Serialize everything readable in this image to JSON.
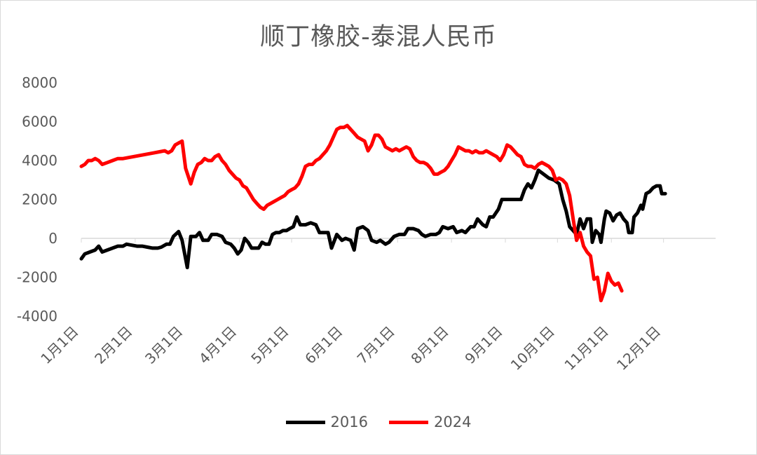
{
  "chart_data": {
    "type": "line",
    "title": "顺丁橡胶-泰混人民币",
    "ylim": [
      -4000,
      8000
    ],
    "y_ticks": [
      "8000",
      "6000",
      "4000",
      "2000",
      "0",
      "-2000",
      "-4000"
    ],
    "x_ticks": [
      "1月1日",
      "2月1日",
      "3月1日",
      "4月1日",
      "5月1日",
      "6月1日",
      "7月1日",
      "8月1日",
      "9月1日",
      "10月1日",
      "11月1日",
      "12月1日"
    ],
    "x_unit": "day_of_year",
    "grid": false,
    "legend_position": "bottom",
    "series": [
      {
        "name": "2016",
        "color": "#000000",
        "points": [
          [
            1,
            -1050
          ],
          [
            3,
            -800
          ],
          [
            6,
            -700
          ],
          [
            9,
            -600
          ],
          [
            11,
            -400
          ],
          [
            13,
            -700
          ],
          [
            16,
            -600
          ],
          [
            19,
            -500
          ],
          [
            22,
            -400
          ],
          [
            25,
            -400
          ],
          [
            27,
            -300
          ],
          [
            30,
            -350
          ],
          [
            33,
            -400
          ],
          [
            36,
            -400
          ],
          [
            39,
            -450
          ],
          [
            42,
            -500
          ],
          [
            45,
            -500
          ],
          [
            47,
            -450
          ],
          [
            50,
            -300
          ],
          [
            52,
            -300
          ],
          [
            54,
            100
          ],
          [
            57,
            350
          ],
          [
            59,
            -100
          ],
          [
            62,
            -1500
          ],
          [
            64,
            100
          ],
          [
            67,
            100
          ],
          [
            69,
            300
          ],
          [
            71,
            -100
          ],
          [
            74,
            -100
          ],
          [
            76,
            200
          ],
          [
            79,
            200
          ],
          [
            82,
            100
          ],
          [
            84,
            -200
          ],
          [
            87,
            -300
          ],
          [
            89,
            -500
          ],
          [
            91,
            -800
          ],
          [
            93,
            -600
          ],
          [
            95,
            0
          ],
          [
            97,
            -200
          ],
          [
            99,
            -500
          ],
          [
            101,
            -500
          ],
          [
            103,
            -500
          ],
          [
            105,
            -200
          ],
          [
            107,
            -300
          ],
          [
            109,
            -300
          ],
          [
            111,
            200
          ],
          [
            113,
            300
          ],
          [
            115,
            300
          ],
          [
            117,
            400
          ],
          [
            119,
            400
          ],
          [
            121,
            500
          ],
          [
            123,
            600
          ],
          [
            125,
            1100
          ],
          [
            127,
            700
          ],
          [
            130,
            700
          ],
          [
            133,
            800
          ],
          [
            136,
            700
          ],
          [
            138,
            300
          ],
          [
            141,
            300
          ],
          [
            143,
            300
          ],
          [
            145,
            -500
          ],
          [
            148,
            200
          ],
          [
            151,
            -100
          ],
          [
            153,
            0
          ],
          [
            156,
            -100
          ],
          [
            158,
            -600
          ],
          [
            160,
            500
          ],
          [
            163,
            600
          ],
          [
            166,
            400
          ],
          [
            168,
            -100
          ],
          [
            171,
            -200
          ],
          [
            173,
            -100
          ],
          [
            176,
            -300
          ],
          [
            178,
            -200
          ],
          [
            181,
            100
          ],
          [
            184,
            200
          ],
          [
            187,
            200
          ],
          [
            189,
            500
          ],
          [
            192,
            500
          ],
          [
            195,
            400
          ],
          [
            197,
            200
          ],
          [
            199,
            100
          ],
          [
            202,
            200
          ],
          [
            205,
            200
          ],
          [
            207,
            300
          ],
          [
            209,
            600
          ],
          [
            212,
            500
          ],
          [
            215,
            600
          ],
          [
            217,
            300
          ],
          [
            220,
            400
          ],
          [
            222,
            300
          ],
          [
            225,
            600
          ],
          [
            227,
            600
          ],
          [
            229,
            1000
          ],
          [
            232,
            700
          ],
          [
            234,
            600
          ],
          [
            236,
            1100
          ],
          [
            238,
            1100
          ],
          [
            241,
            1500
          ],
          [
            243,
            2000
          ],
          [
            246,
            2000
          ],
          [
            249,
            2000
          ],
          [
            252,
            2000
          ],
          [
            254,
            2000
          ],
          [
            256,
            2500
          ],
          [
            258,
            2800
          ],
          [
            260,
            2600
          ],
          [
            262,
            3000
          ],
          [
            264,
            3500
          ],
          [
            267,
            3300
          ],
          [
            270,
            3100
          ],
          [
            273,
            3000
          ],
          [
            276,
            2800
          ],
          [
            278,
            2000
          ],
          [
            280,
            1400
          ],
          [
            282,
            600
          ],
          [
            284,
            400
          ],
          [
            286,
            200
          ],
          [
            288,
            1000
          ],
          [
            290,
            500
          ],
          [
            292,
            1000
          ],
          [
            294,
            1000
          ],
          [
            295,
            -200
          ],
          [
            297,
            400
          ],
          [
            299,
            200
          ],
          [
            300,
            -200
          ],
          [
            302,
            1000
          ],
          [
            303,
            1400
          ],
          [
            305,
            1300
          ],
          [
            307,
            900
          ],
          [
            309,
            1200
          ],
          [
            311,
            1300
          ],
          [
            313,
            1000
          ],
          [
            315,
            800
          ],
          [
            316,
            300
          ],
          [
            318,
            300
          ],
          [
            319,
            1100
          ],
          [
            321,
            1300
          ],
          [
            323,
            1700
          ],
          [
            324,
            1500
          ],
          [
            326,
            2300
          ],
          [
            328,
            2400
          ],
          [
            330,
            2600
          ],
          [
            332,
            2700
          ],
          [
            334,
            2700
          ],
          [
            335,
            2300
          ],
          [
            337,
            2300
          ]
        ]
      },
      {
        "name": "2024",
        "color": "#ff0000",
        "points": [
          [
            1,
            3700
          ],
          [
            3,
            3800
          ],
          [
            5,
            4000
          ],
          [
            7,
            4000
          ],
          [
            9,
            4100
          ],
          [
            11,
            4000
          ],
          [
            13,
            3800
          ],
          [
            16,
            3900
          ],
          [
            19,
            4000
          ],
          [
            22,
            4100
          ],
          [
            25,
            4100
          ],
          [
            28,
            4150
          ],
          [
            31,
            4200
          ],
          [
            34,
            4250
          ],
          [
            37,
            4300
          ],
          [
            40,
            4350
          ],
          [
            43,
            4400
          ],
          [
            46,
            4450
          ],
          [
            49,
            4500
          ],
          [
            51,
            4400
          ],
          [
            53,
            4500
          ],
          [
            55,
            4800
          ],
          [
            57,
            4900
          ],
          [
            59,
            5000
          ],
          [
            61,
            3600
          ],
          [
            64,
            2800
          ],
          [
            66,
            3400
          ],
          [
            68,
            3800
          ],
          [
            70,
            3900
          ],
          [
            72,
            4100
          ],
          [
            74,
            4000
          ],
          [
            76,
            4000
          ],
          [
            78,
            4200
          ],
          [
            80,
            4300
          ],
          [
            82,
            4000
          ],
          [
            84,
            3800
          ],
          [
            86,
            3500
          ],
          [
            88,
            3300
          ],
          [
            90,
            3100
          ],
          [
            92,
            3000
          ],
          [
            94,
            2700
          ],
          [
            96,
            2600
          ],
          [
            98,
            2300
          ],
          [
            100,
            2000
          ],
          [
            102,
            1800
          ],
          [
            104,
            1600
          ],
          [
            106,
            1500
          ],
          [
            108,
            1700
          ],
          [
            110,
            1800
          ],
          [
            112,
            1900
          ],
          [
            114,
            2000
          ],
          [
            116,
            2100
          ],
          [
            118,
            2200
          ],
          [
            120,
            2400
          ],
          [
            122,
            2500
          ],
          [
            124,
            2600
          ],
          [
            126,
            2800
          ],
          [
            128,
            3200
          ],
          [
            130,
            3700
          ],
          [
            132,
            3800
          ],
          [
            134,
            3800
          ],
          [
            136,
            4000
          ],
          [
            138,
            4100
          ],
          [
            140,
            4300
          ],
          [
            142,
            4500
          ],
          [
            144,
            4800
          ],
          [
            146,
            5200
          ],
          [
            148,
            5600
          ],
          [
            150,
            5700
          ],
          [
            152,
            5700
          ],
          [
            154,
            5800
          ],
          [
            156,
            5600
          ],
          [
            158,
            5400
          ],
          [
            160,
            5200
          ],
          [
            162,
            5100
          ],
          [
            164,
            5000
          ],
          [
            166,
            4500
          ],
          [
            168,
            4800
          ],
          [
            170,
            5300
          ],
          [
            172,
            5300
          ],
          [
            174,
            5100
          ],
          [
            176,
            4700
          ],
          [
            178,
            4600
          ],
          [
            180,
            4500
          ],
          [
            182,
            4600
          ],
          [
            184,
            4500
          ],
          [
            186,
            4600
          ],
          [
            188,
            4700
          ],
          [
            190,
            4600
          ],
          [
            192,
            4200
          ],
          [
            194,
            4000
          ],
          [
            196,
            3900
          ],
          [
            198,
            3900
          ],
          [
            200,
            3800
          ],
          [
            202,
            3600
          ],
          [
            204,
            3300
          ],
          [
            206,
            3300
          ],
          [
            208,
            3400
          ],
          [
            210,
            3500
          ],
          [
            212,
            3700
          ],
          [
            214,
            4000
          ],
          [
            216,
            4300
          ],
          [
            218,
            4700
          ],
          [
            220,
            4600
          ],
          [
            222,
            4500
          ],
          [
            224,
            4500
          ],
          [
            226,
            4400
          ],
          [
            228,
            4500
          ],
          [
            230,
            4400
          ],
          [
            232,
            4400
          ],
          [
            234,
            4500
          ],
          [
            236,
            4400
          ],
          [
            238,
            4300
          ],
          [
            240,
            4200
          ],
          [
            242,
            4000
          ],
          [
            244,
            4300
          ],
          [
            246,
            4800
          ],
          [
            248,
            4700
          ],
          [
            250,
            4500
          ],
          [
            252,
            4300
          ],
          [
            254,
            4200
          ],
          [
            256,
            3800
          ],
          [
            258,
            3700
          ],
          [
            260,
            3700
          ],
          [
            262,
            3600
          ],
          [
            264,
            3800
          ],
          [
            266,
            3900
          ],
          [
            268,
            3800
          ],
          [
            270,
            3700
          ],
          [
            272,
            3500
          ],
          [
            274,
            3000
          ],
          [
            276,
            3100
          ],
          [
            278,
            3000
          ],
          [
            280,
            2800
          ],
          [
            282,
            2200
          ],
          [
            284,
            1000
          ],
          [
            286,
            -100
          ],
          [
            288,
            300
          ],
          [
            290,
            -400
          ],
          [
            292,
            -700
          ],
          [
            294,
            -900
          ],
          [
            296,
            -2100
          ],
          [
            298,
            -2000
          ],
          [
            300,
            -3200
          ],
          [
            302,
            -2700
          ],
          [
            304,
            -1800
          ],
          [
            306,
            -2200
          ],
          [
            308,
            -2400
          ],
          [
            310,
            -2300
          ],
          [
            312,
            -2700
          ]
        ]
      }
    ]
  }
}
